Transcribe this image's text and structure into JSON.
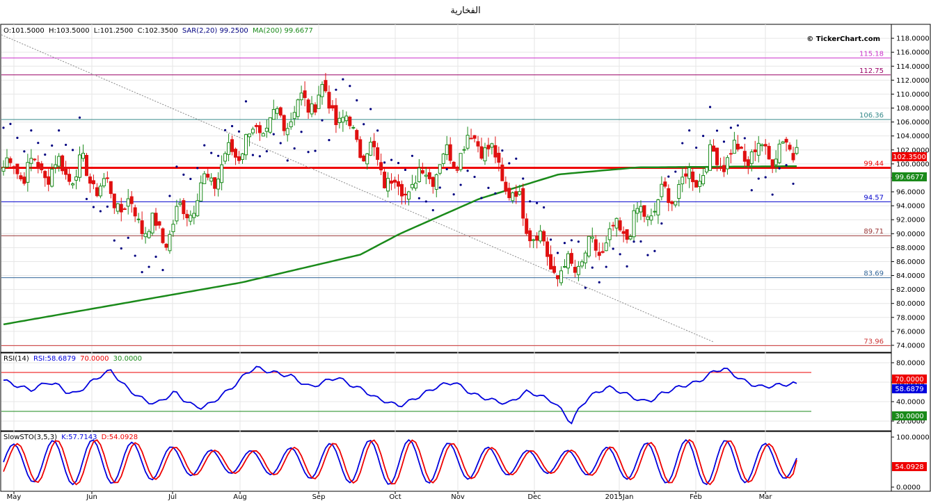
{
  "title": "الفخارية",
  "watermark": "© TickerChart.com",
  "price_panel": {
    "info": {
      "open": "O:101.5000",
      "high": "H:103.5000",
      "low": "L:101.2500",
      "close": "C:102.3500",
      "sar": "SAR(2,20) 99.2500",
      "ma": "MA(200) 99.6677"
    },
    "y_ticks": [
      "118.0000",
      "116.0000",
      "114.0000",
      "112.0000",
      "110.0000",
      "108.0000",
      "106.0000",
      "104.0000",
      "102.0000",
      "100.0000",
      "98.0000",
      "96.0000",
      "94.0000",
      "92.0000",
      "90.0000",
      "88.0000",
      "86.0000",
      "84.0000",
      "82.0000",
      "80.0000",
      "78.0000",
      "76.0000",
      "74.0000"
    ],
    "last_price_label": "102.3500",
    "ma_label": "99.6677"
  },
  "rsi_panel": {
    "info": {
      "name": "RSI(14)",
      "value": "RSI:58.6879",
      "upper": "70.0000",
      "lower": "30.0000"
    },
    "y_ticks": [
      "80.0000",
      "60.0000",
      "40.0000",
      "20.0000"
    ],
    "labels": {
      "upper": "70.0000",
      "current": "58.6879",
      "lower": "30.0000"
    }
  },
  "sto_panel": {
    "info": {
      "name": "SlowSTO(3,5,3)",
      "k": "K:57.7143",
      "d": "D:54.0928"
    },
    "y_ticks": [
      "100.0000",
      "0.0000"
    ],
    "labels": {
      "current": "54.0928"
    }
  },
  "x_ticks": [
    "May",
    "Jun",
    "Jul",
    "Aug",
    "Sep",
    "Oct",
    "Nov",
    "Dec",
    "2015Jan",
    "Feb",
    "Mar"
  ],
  "colors": {
    "up": "#1a8a1a",
    "down": "#e01010",
    "ma": "#1a8a1a",
    "sar": "#000080",
    "rsi": "#0000dd",
    "sto_k": "#0000dd",
    "sto_d": "#ee0000"
  },
  "chart_data": [
    {
      "type": "candlestick",
      "ylim": [
        73,
        120
      ],
      "x": [
        "May",
        "Jun",
        "Jul",
        "Aug",
        "Sep",
        "Oct",
        "Nov",
        "Dec",
        "2015Jan",
        "Feb",
        "Mar"
      ],
      "monthly_close_approx": [
        99.5,
        99.0,
        89.5,
        103.0,
        110.0,
        96.0,
        104.0,
        84.0,
        92.0,
        101.0,
        102.35
      ],
      "last_candle": {
        "open": 101.5,
        "high": 103.5,
        "low": 101.25,
        "close": 102.35
      },
      "support_resistance": [
        {
          "value": 115.18,
          "label": "115.18",
          "color": "#cc33cc"
        },
        {
          "value": 112.75,
          "label": "112.75",
          "color": "#990066"
        },
        {
          "value": 106.36,
          "label": "106.36",
          "color": "#338888"
        },
        {
          "value": 99.44,
          "label": "99.44",
          "color": "#ee0000"
        },
        {
          "value": 94.57,
          "label": "94.57",
          "color": "#0000cc"
        },
        {
          "value": 89.71,
          "label": "89.71",
          "color": "#993333"
        },
        {
          "value": 83.69,
          "label": "83.69",
          "color": "#336699"
        },
        {
          "value": 73.96,
          "label": "73.96",
          "color": "#cc3333"
        }
      ],
      "ma200_anchor": [
        [
          0,
          77
        ],
        [
          0.2,
          81
        ],
        [
          0.3,
          83
        ],
        [
          0.45,
          87
        ],
        [
          0.5,
          90
        ],
        [
          0.6,
          95
        ],
        [
          0.7,
          98.5
        ],
        [
          0.8,
          99.5
        ],
        [
          1.0,
          99.67
        ]
      ],
      "sar": 99.25,
      "ma200": 99.6677
    },
    {
      "type": "line",
      "name": "RSI(14)",
      "ylim": [
        10,
        90
      ],
      "current": 58.6879,
      "levels": [
        70,
        30
      ],
      "profile": [
        62,
        58,
        55,
        52,
        56,
        60,
        57,
        50,
        48,
        55,
        62,
        68,
        72,
        60,
        52,
        45,
        40,
        38,
        44,
        50,
        42,
        36,
        34,
        38,
        45,
        52,
        60,
        70,
        75,
        72,
        70,
        68,
        66,
        60,
        55,
        58,
        62,
        65,
        60,
        55,
        52,
        45,
        42,
        38,
        36,
        40,
        45,
        50,
        55,
        58,
        60,
        54,
        48,
        45,
        42,
        40,
        38,
        44,
        50,
        48,
        44,
        40,
        30,
        18,
        35,
        45,
        50,
        55,
        52,
        48,
        44,
        40,
        42,
        48,
        52,
        55,
        58,
        60,
        66,
        72,
        74,
        68,
        62,
        58,
        55,
        56,
        57,
        58,
        58.69
      ]
    },
    {
      "type": "line",
      "name": "SlowSTO(3,5,3)",
      "ylim": [
        0,
        100
      ],
      "k": 57.7143,
      "d": 54.0928
    }
  ]
}
